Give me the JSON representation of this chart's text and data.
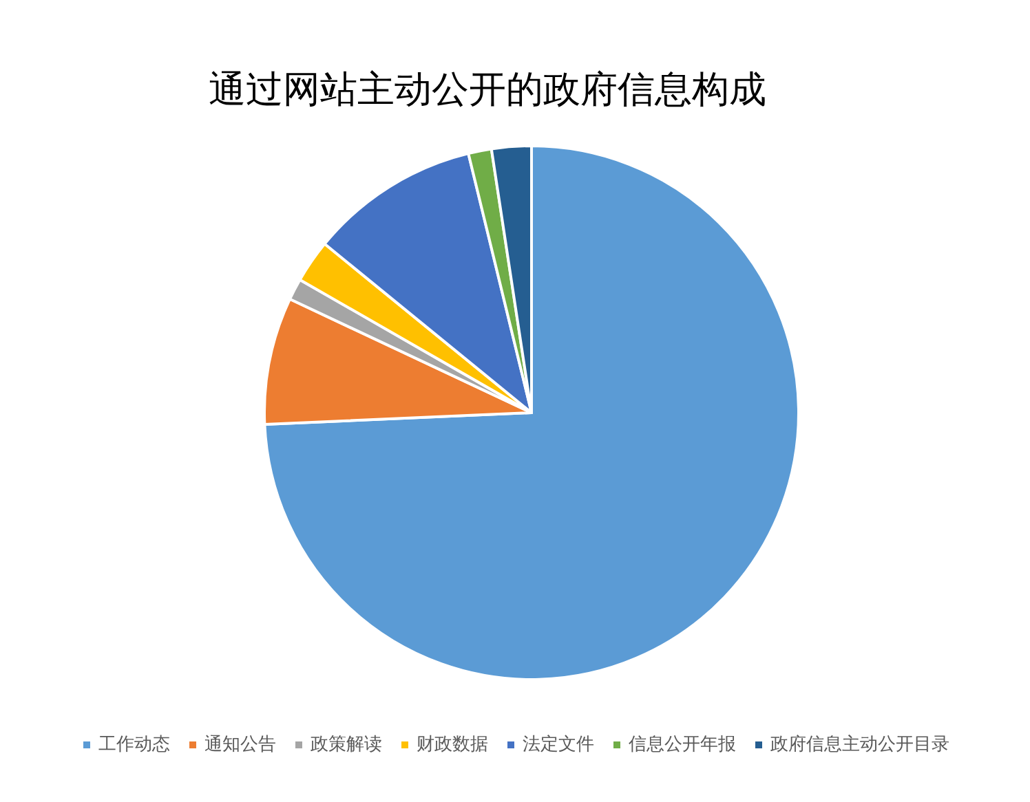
{
  "chart_data": {
    "type": "pie",
    "title": "通过网站主动公开的政府信息构成",
    "categories": [
      "工作动态",
      "通知公告",
      "政策解读",
      "财政数据",
      "法定文件",
      "信息公开年报",
      "政府信息主动公开目录"
    ],
    "values": [
      74.3,
      7.7,
      1.3,
      2.6,
      10.3,
      1.4,
      2.4
    ],
    "colors": [
      "#5b9bd5",
      "#ed7d31",
      "#a5a5a5",
      "#ffc000",
      "#4472c4",
      "#70ad47",
      "#255e91"
    ],
    "legend": "bottom"
  }
}
